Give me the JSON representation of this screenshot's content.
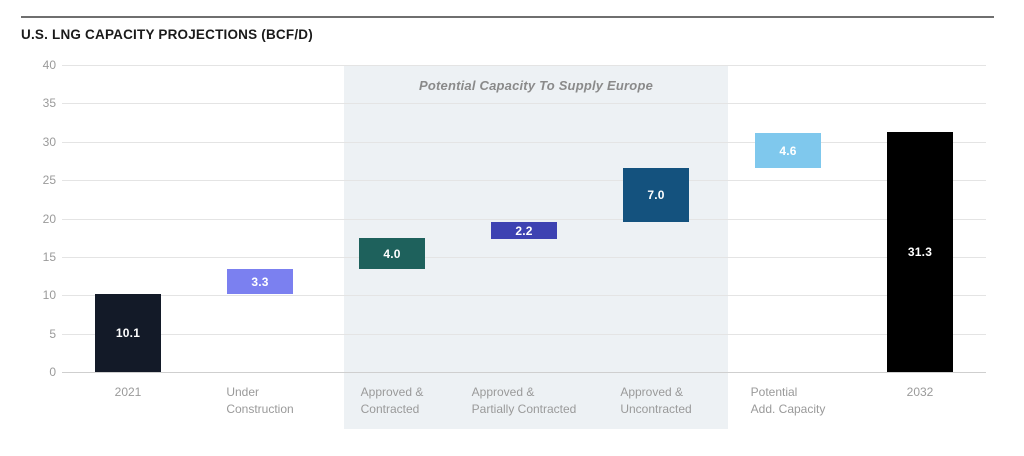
{
  "header": {
    "title": "U.S. LNG CAPACITY PROJECTIONS (BCF/D)"
  },
  "chart_data": {
    "type": "bar",
    "subtype": "waterfall",
    "title": "U.S. LNG CAPACITY PROJECTIONS (BCF/D)",
    "ylabel": "",
    "xlabel": "",
    "ylim": [
      0,
      40
    ],
    "yticks": [
      0,
      5,
      10,
      15,
      20,
      25,
      30,
      35,
      40
    ],
    "grid": true,
    "legend": "none",
    "region": {
      "label": "Potential Capacity To Supply Europe",
      "covers_categories": [
        "Approved & Contracted",
        "Approved & Partially Contracted",
        "Approved & Uncontracted"
      ],
      "color": "#edf1f4",
      "label_color": "#8a8a8a"
    },
    "categories": [
      "2021",
      "Under Construction",
      "Approved & Contracted",
      "Approved & Partially Contracted",
      "Approved & Uncontracted",
      "Potential Add. Capacity",
      "2032"
    ],
    "values": [
      10.1,
      3.3,
      4.0,
      2.2,
      7.0,
      4.6,
      31.3
    ],
    "bars": [
      {
        "category": "2021",
        "label_lines": [
          "2021"
        ],
        "start": 0,
        "end": 10.1,
        "value": "10.1",
        "color": "#131a28"
      },
      {
        "category": "Under Construction",
        "label_lines": [
          "Under",
          "Construction"
        ],
        "start": 10.1,
        "end": 13.4,
        "value": "3.3",
        "color": "#7b80f0"
      },
      {
        "category": "Approved & Contracted",
        "label_lines": [
          "Approved &",
          "Contracted"
        ],
        "start": 13.4,
        "end": 17.4,
        "value": "4.0",
        "color": "#1e615c"
      },
      {
        "category": "Approved & Partially Contracted",
        "label_lines": [
          "Approved &",
          "Partially Contracted"
        ],
        "start": 17.4,
        "end": 19.6,
        "value": "2.2",
        "color": "#3d42b2"
      },
      {
        "category": "Approved & Uncontracted",
        "label_lines": [
          "Approved &",
          "Uncontracted"
        ],
        "start": 19.6,
        "end": 26.6,
        "value": "7.0",
        "color": "#14527e"
      },
      {
        "category": "Potential Add. Capacity",
        "label_lines": [
          "Potential",
          "Add. Capacity"
        ],
        "start": 26.6,
        "end": 31.2,
        "value": "4.6",
        "color": "#7fc8ed"
      },
      {
        "category": "2032",
        "label_lines": [
          "2032"
        ],
        "start": 0,
        "end": 31.3,
        "value": "31.3",
        "color": "#000000"
      }
    ],
    "value_label_color": "#ffffff",
    "axis_text_color": "#9a9a9a"
  }
}
